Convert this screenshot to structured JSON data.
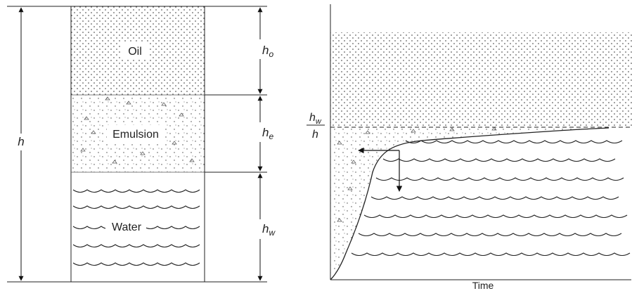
{
  "left_column": {
    "layers": {
      "oil": "Oil",
      "emulsion": "Emulsion",
      "water": "Water"
    },
    "dimensions": {
      "total": "h",
      "oil": {
        "base": "h",
        "sub": "o"
      },
      "emulsion": {
        "base": "h",
        "sub": "e"
      },
      "water": {
        "base": "h",
        "sub": "w"
      }
    }
  },
  "right_plot": {
    "y_ratio": {
      "numerator_base": "h",
      "numerator_sub": "w",
      "denominator": "h"
    },
    "x_axis_label": "Time"
  }
}
